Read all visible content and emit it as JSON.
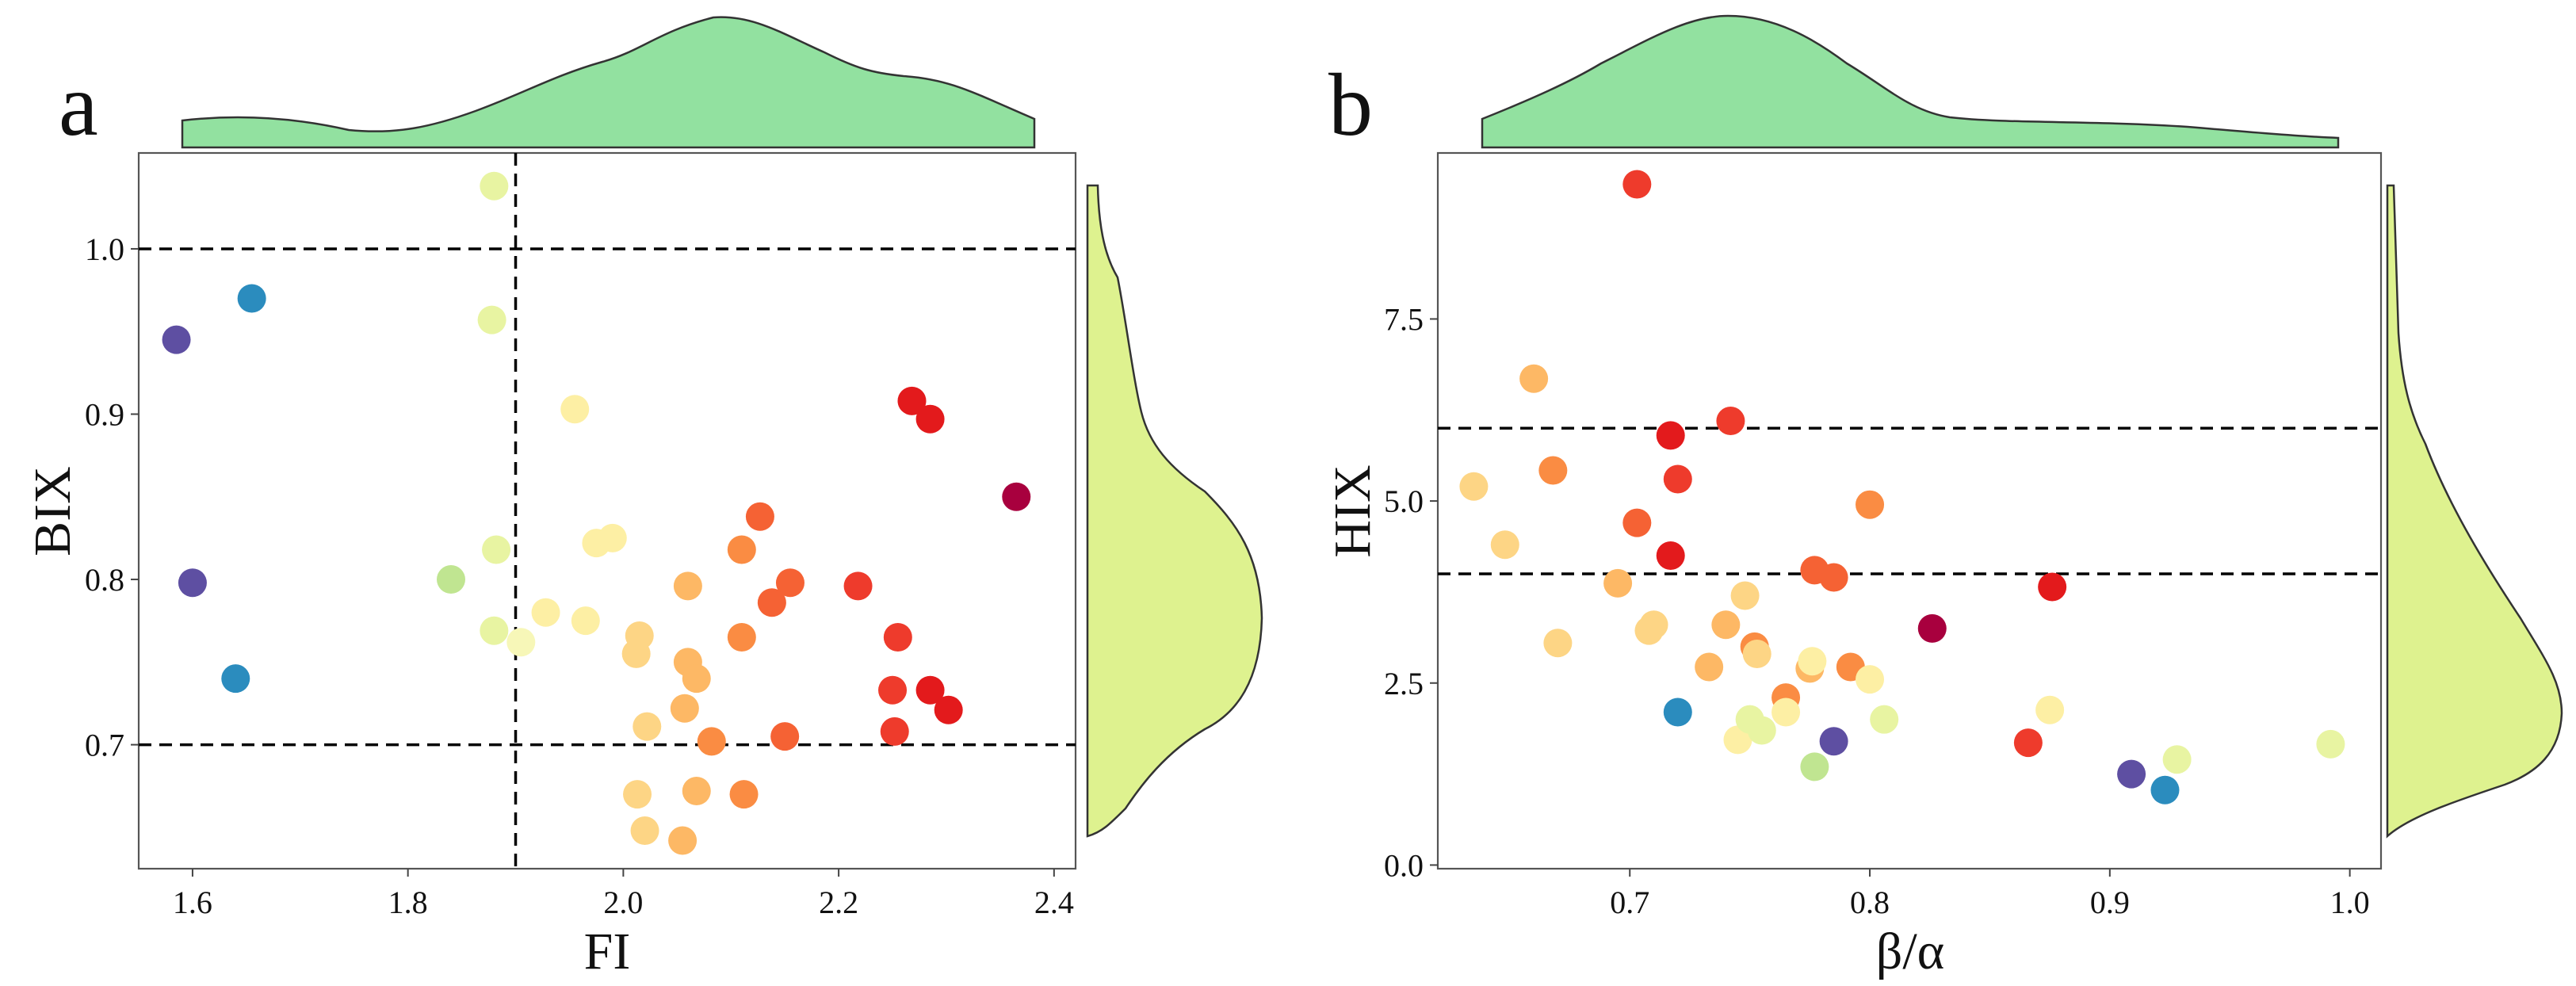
{
  "colors": {
    "density_top": "#92e1a0",
    "density_right": "#def28f",
    "palette": [
      "#a8003e",
      "#d71f2b",
      "#ee3b2c",
      "#f56234",
      "#fa8c43",
      "#fdb865",
      "#fdd585",
      "#fdefa4",
      "#e8f4a2",
      "#c0e591",
      "#2b8cbe",
      "#5e4fa2"
    ]
  },
  "chart_data": [
    {
      "type": "scatter",
      "panel_label": "a",
      "xlabel": "FI",
      "ylabel": "BIX",
      "xlim": [
        1.55,
        2.42
      ],
      "ylim": [
        0.625,
        1.058
      ],
      "xticks": [
        1.6,
        1.8,
        2.0,
        2.2,
        2.4
      ],
      "xtick_labels": [
        "1.6",
        "1.8",
        "2.0",
        "2.2",
        "2.4"
      ],
      "yticks": [
        0.7,
        0.8,
        0.9,
        1.0
      ],
      "ytick_labels": [
        "0.7",
        "0.8",
        "0.9",
        "1.0"
      ],
      "hlines": [
        1.0,
        0.7
      ],
      "vlines": [
        1.9
      ],
      "marginal_top_density": "x",
      "marginal_right_density": "y",
      "points": [
        {
          "x": 1.585,
          "y": 0.945,
          "color": "#5e4fa2"
        },
        {
          "x": 1.655,
          "y": 0.97,
          "color": "#2b8cbe"
        },
        {
          "x": 1.6,
          "y": 0.798,
          "color": "#5e4fa2"
        },
        {
          "x": 1.64,
          "y": 0.74,
          "color": "#2b8cbe"
        },
        {
          "x": 1.88,
          "y": 1.038,
          "color": "#e8f4a2"
        },
        {
          "x": 1.878,
          "y": 0.957,
          "color": "#e8f4a2"
        },
        {
          "x": 1.882,
          "y": 0.818,
          "color": "#e8f4a2"
        },
        {
          "x": 1.84,
          "y": 0.8,
          "color": "#c0e591"
        },
        {
          "x": 1.88,
          "y": 0.769,
          "color": "#e8f4a2"
        },
        {
          "x": 1.905,
          "y": 0.762,
          "color": "#f7f7b8"
        },
        {
          "x": 1.928,
          "y": 0.78,
          "color": "#fdefa4"
        },
        {
          "x": 1.955,
          "y": 0.903,
          "color": "#fdefa4"
        },
        {
          "x": 1.965,
          "y": 0.775,
          "color": "#fdefa4"
        },
        {
          "x": 1.975,
          "y": 0.822,
          "color": "#fdefa4"
        },
        {
          "x": 1.99,
          "y": 0.825,
          "color": "#fdefa4"
        },
        {
          "x": 2.015,
          "y": 0.766,
          "color": "#fdd585"
        },
        {
          "x": 2.012,
          "y": 0.755,
          "color": "#fdd585"
        },
        {
          "x": 2.022,
          "y": 0.711,
          "color": "#fdd585"
        },
        {
          "x": 2.013,
          "y": 0.67,
          "color": "#fdd585"
        },
        {
          "x": 2.02,
          "y": 0.648,
          "color": "#fdd585"
        },
        {
          "x": 2.06,
          "y": 0.796,
          "color": "#fdb865"
        },
        {
          "x": 2.06,
          "y": 0.75,
          "color": "#fdb865"
        },
        {
          "x": 2.057,
          "y": 0.722,
          "color": "#fdb865"
        },
        {
          "x": 2.068,
          "y": 0.74,
          "color": "#fdb865"
        },
        {
          "x": 2.068,
          "y": 0.672,
          "color": "#fdb865"
        },
        {
          "x": 2.055,
          "y": 0.642,
          "color": "#fdb865"
        },
        {
          "x": 2.082,
          "y": 0.702,
          "color": "#fa8c43"
        },
        {
          "x": 2.11,
          "y": 0.818,
          "color": "#fa8c43"
        },
        {
          "x": 2.11,
          "y": 0.765,
          "color": "#fa8c43"
        },
        {
          "x": 2.112,
          "y": 0.67,
          "color": "#fa8c43"
        },
        {
          "x": 2.127,
          "y": 0.838,
          "color": "#f56234"
        },
        {
          "x": 2.138,
          "y": 0.786,
          "color": "#f56234"
        },
        {
          "x": 2.155,
          "y": 0.798,
          "color": "#f56234"
        },
        {
          "x": 2.15,
          "y": 0.705,
          "color": "#f56234"
        },
        {
          "x": 2.218,
          "y": 0.796,
          "color": "#ee3b2c"
        },
        {
          "x": 2.255,
          "y": 0.765,
          "color": "#ee3b2c"
        },
        {
          "x": 2.25,
          "y": 0.733,
          "color": "#ee3b2c"
        },
        {
          "x": 2.252,
          "y": 0.708,
          "color": "#ee3b2c"
        },
        {
          "x": 2.268,
          "y": 0.908,
          "color": "#e31a1c"
        },
        {
          "x": 2.285,
          "y": 0.897,
          "color": "#e31a1c"
        },
        {
          "x": 2.285,
          "y": 0.733,
          "color": "#e31a1c"
        },
        {
          "x": 2.302,
          "y": 0.721,
          "color": "#e31a1c"
        },
        {
          "x": 2.365,
          "y": 0.85,
          "color": "#a8003e"
        }
      ]
    },
    {
      "type": "scatter",
      "panel_label": "b",
      "xlabel": "β/α",
      "ylabel": "HIX",
      "xlim": [
        0.62,
        1.013
      ],
      "ylim": [
        -0.05,
        9.78
      ],
      "xticks": [
        0.7,
        0.8,
        0.9,
        1.0
      ],
      "xtick_labels": [
        "0.7",
        "0.8",
        "0.9",
        "1.0"
      ],
      "yticks": [
        0.0,
        2.5,
        5.0,
        7.5
      ],
      "ytick_labels": [
        "0.0",
        "2.5",
        "5.0",
        "7.5"
      ],
      "hlines": [
        6.0,
        4.0
      ],
      "vlines": [],
      "marginal_top_density": "x",
      "marginal_right_density": "y",
      "points": [
        {
          "x": 0.703,
          "y": 9.35,
          "color": "#ee3b2c"
        },
        {
          "x": 0.66,
          "y": 6.68,
          "color": "#fdb865"
        },
        {
          "x": 0.635,
          "y": 5.2,
          "color": "#fdd585"
        },
        {
          "x": 0.648,
          "y": 4.4,
          "color": "#fdd585"
        },
        {
          "x": 0.668,
          "y": 5.42,
          "color": "#fa8c43"
        },
        {
          "x": 0.67,
          "y": 3.05,
          "color": "#fdd585"
        },
        {
          "x": 0.695,
          "y": 3.87,
          "color": "#fdb865"
        },
        {
          "x": 0.703,
          "y": 4.7,
          "color": "#f56234"
        },
        {
          "x": 0.708,
          "y": 3.22,
          "color": "#fdd585"
        },
        {
          "x": 0.71,
          "y": 3.3,
          "color": "#fdd585"
        },
        {
          "x": 0.717,
          "y": 5.9,
          "color": "#e31a1c"
        },
        {
          "x": 0.717,
          "y": 4.25,
          "color": "#e31a1c"
        },
        {
          "x": 0.72,
          "y": 5.3,
          "color": "#ee3b2c"
        },
        {
          "x": 0.72,
          "y": 2.1,
          "color": "#2b8cbe"
        },
        {
          "x": 0.733,
          "y": 2.72,
          "color": "#fdb865"
        },
        {
          "x": 0.74,
          "y": 3.3,
          "color": "#fdb865"
        },
        {
          "x": 0.742,
          "y": 6.1,
          "color": "#ee3b2c"
        },
        {
          "x": 0.745,
          "y": 1.72,
          "color": "#fdefa4"
        },
        {
          "x": 0.748,
          "y": 3.7,
          "color": "#fdd585"
        },
        {
          "x": 0.75,
          "y": 2.0,
          "color": "#e8f4a2"
        },
        {
          "x": 0.752,
          "y": 3.0,
          "color": "#fa8c43"
        },
        {
          "x": 0.753,
          "y": 2.9,
          "color": "#fdd585"
        },
        {
          "x": 0.755,
          "y": 1.85,
          "color": "#e8f4a2"
        },
        {
          "x": 0.765,
          "y": 2.3,
          "color": "#fa8c43"
        },
        {
          "x": 0.765,
          "y": 2.1,
          "color": "#fdefa4"
        },
        {
          "x": 0.775,
          "y": 2.7,
          "color": "#fdb865"
        },
        {
          "x": 0.777,
          "y": 4.05,
          "color": "#f56234"
        },
        {
          "x": 0.776,
          "y": 2.8,
          "color": "#fdefa4"
        },
        {
          "x": 0.777,
          "y": 1.35,
          "color": "#c0e591"
        },
        {
          "x": 0.785,
          "y": 3.95,
          "color": "#f56234"
        },
        {
          "x": 0.785,
          "y": 1.7,
          "color": "#5e4fa2"
        },
        {
          "x": 0.792,
          "y": 2.72,
          "color": "#fa8c43"
        },
        {
          "x": 0.8,
          "y": 4.95,
          "color": "#fa8c43"
        },
        {
          "x": 0.8,
          "y": 2.55,
          "color": "#fdefa4"
        },
        {
          "x": 0.806,
          "y": 2.0,
          "color": "#e8f4a2"
        },
        {
          "x": 0.826,
          "y": 3.25,
          "color": "#a8003e"
        },
        {
          "x": 0.866,
          "y": 1.68,
          "color": "#ee3b2c"
        },
        {
          "x": 0.876,
          "y": 3.82,
          "color": "#e31a1c"
        },
        {
          "x": 0.875,
          "y": 2.13,
          "color": "#fdefa4"
        },
        {
          "x": 0.909,
          "y": 1.25,
          "color": "#5e4fa2"
        },
        {
          "x": 0.923,
          "y": 1.03,
          "color": "#2b8cbe"
        },
        {
          "x": 0.928,
          "y": 1.45,
          "color": "#e8f4a2"
        },
        {
          "x": 0.992,
          "y": 1.66,
          "color": "#e8f4a2"
        }
      ]
    }
  ]
}
